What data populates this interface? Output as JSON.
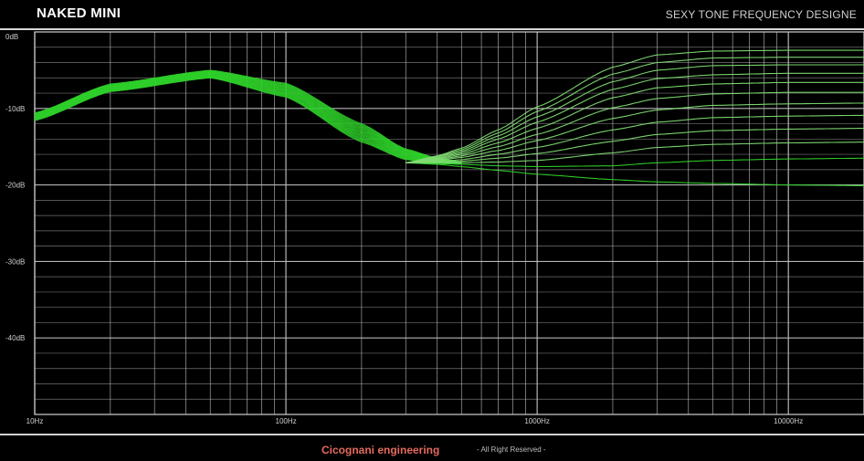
{
  "header": {
    "title": "NAKED MINI",
    "subtitle": "SEXY TONE FREQUENCY DESIGNE"
  },
  "footer": {
    "brand": "Cicognani engineering",
    "rights": "- All Right Reserved -"
  },
  "colors": {
    "background": "#000000",
    "grid": "#bfbfbf",
    "curve_low": "#2fd12a",
    "curve_high": "#7fdc72",
    "brand": "#e46a5e"
  },
  "chart_data": {
    "type": "line",
    "title": "NAKED MINI",
    "subtitle": "SEXY TONE FREQUENCY DESIGNE",
    "x_scale": "log",
    "xlim": [
      10,
      20000
    ],
    "ylim": [
      -50,
      0
    ],
    "x_tick_labels": [
      {
        "value": 10,
        "label": "10Hz"
      },
      {
        "value": 100,
        "label": "100Hz"
      },
      {
        "value": 1000,
        "label": "1000Hz"
      },
      {
        "value": 10000,
        "label": "10000Hz"
      }
    ],
    "y_tick_labels": [
      {
        "value": 0,
        "label": "0dB"
      },
      {
        "value": -10,
        "label": "-10dB"
      },
      {
        "value": -20,
        "label": "-20dB"
      },
      {
        "value": -30,
        "label": "-30dB"
      },
      {
        "value": -40,
        "label": "-40dB"
      }
    ],
    "grid": true,
    "bass_family": {
      "x": [
        10,
        20,
        50,
        100,
        200,
        300,
        400,
        500
      ],
      "series": [
        {
          "values": [
            -11.6,
            -7.8,
            -6.0,
            -8.5,
            -14.4,
            -16.7,
            -17.1,
            -17.2
          ]
        },
        {
          "values": [
            -11.1,
            -7.3,
            -5.5,
            -7.6,
            -13.2,
            -16.0,
            -16.8,
            -17.1
          ]
        },
        {
          "values": [
            -10.6,
            -6.8,
            -5.0,
            -6.7,
            -12.0,
            -15.3,
            -16.5,
            -17.0
          ]
        }
      ]
    },
    "treble_family": {
      "x": [
        300,
        400,
        500,
        700,
        1000,
        2000,
        3000,
        5000,
        10000,
        20000
      ],
      "series": [
        {
          "values": [
            -17.1,
            -17.3,
            -17.6,
            -18.1,
            -18.6,
            -19.3,
            -19.6,
            -19.8,
            -20.0,
            -20.1
          ]
        },
        {
          "values": [
            -17.1,
            -17.2,
            -17.3,
            -17.5,
            -17.6,
            -17.5,
            -17.1,
            -16.8,
            -16.6,
            -16.5
          ]
        },
        {
          "values": [
            -17.1,
            -17.1,
            -17.1,
            -17.0,
            -16.8,
            -15.8,
            -15.1,
            -14.7,
            -14.5,
            -14.4
          ]
        },
        {
          "values": [
            -17.1,
            -17.0,
            -16.9,
            -16.5,
            -15.9,
            -14.3,
            -13.4,
            -12.9,
            -12.7,
            -12.6
          ]
        },
        {
          "values": [
            -17.1,
            -16.9,
            -16.7,
            -16.0,
            -15.1,
            -12.8,
            -11.8,
            -11.2,
            -11.0,
            -10.9
          ]
        },
        {
          "values": [
            -17.1,
            -16.8,
            -16.4,
            -15.5,
            -14.2,
            -11.3,
            -10.2,
            -9.6,
            -9.4,
            -9.3
          ]
        },
        {
          "values": [
            -17.1,
            -16.7,
            -16.2,
            -15.0,
            -13.4,
            -9.9,
            -8.7,
            -8.1,
            -7.9,
            -7.9
          ]
        },
        {
          "values": [
            -17.1,
            -16.6,
            -16.0,
            -14.5,
            -12.6,
            -8.6,
            -7.3,
            -6.8,
            -6.6,
            -6.6
          ]
        },
        {
          "values": [
            -17.1,
            -16.5,
            -15.8,
            -14.0,
            -11.8,
            -7.5,
            -6.1,
            -5.6,
            -5.4,
            -5.4
          ]
        },
        {
          "values": [
            -17.1,
            -16.4,
            -15.6,
            -13.6,
            -11.1,
            -6.5,
            -5.0,
            -4.4,
            -4.3,
            -4.3
          ]
        },
        {
          "values": [
            -17.1,
            -16.3,
            -15.4,
            -13.2,
            -10.4,
            -5.5,
            -4.0,
            -3.4,
            -3.3,
            -3.3
          ]
        },
        {
          "values": [
            -17.1,
            -16.2,
            -15.2,
            -12.8,
            -9.8,
            -4.6,
            -3.0,
            -2.5,
            -2.4,
            -2.4
          ]
        }
      ]
    }
  }
}
